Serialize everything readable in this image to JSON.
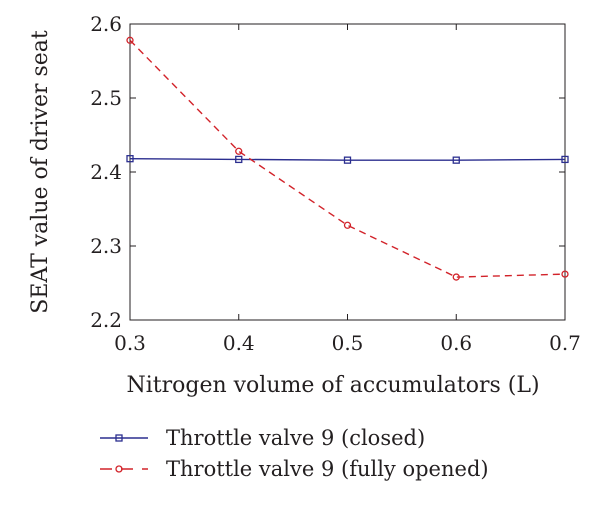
{
  "chart_data": {
    "type": "line",
    "xlabel": "Nitrogen volume of accumulators (L)",
    "ylabel": "SEAT value of driver seat",
    "x": [
      0.3,
      0.4,
      0.5,
      0.6,
      0.7
    ],
    "xlim": [
      0.3,
      0.7
    ],
    "ylim": [
      2.2,
      2.6
    ],
    "xticks": [
      "0.3",
      "0.4",
      "0.5",
      "0.6",
      "0.7"
    ],
    "yticks": [
      "2.2",
      "2.3",
      "2.4",
      "2.5",
      "2.6"
    ],
    "grid": false,
    "legend_position": "bottom",
    "series": [
      {
        "name": "Throttle valve 9 (closed)",
        "values": [
          2.418,
          2.417,
          2.416,
          2.416,
          2.417
        ],
        "color": "#2b2e8f",
        "line_style": "solid",
        "marker": "square"
      },
      {
        "name": "Throttle valve 9 (fully opened)",
        "values": [
          2.578,
          2.428,
          2.328,
          2.258,
          2.262
        ],
        "color": "#d2232a",
        "line_style": "dashed",
        "marker": "circle"
      }
    ]
  }
}
